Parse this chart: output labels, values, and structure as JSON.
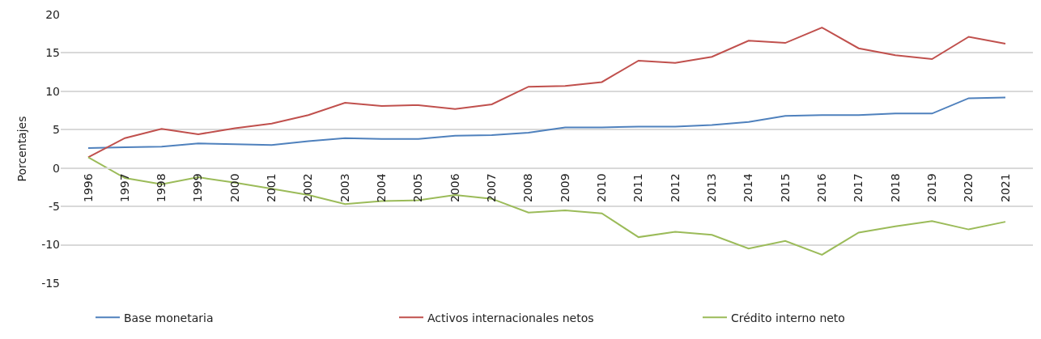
{
  "chart_data": {
    "type": "line",
    "ylabel": "Porcentajes",
    "categories": [
      "1996",
      "1997",
      "1998",
      "1999",
      "2000",
      "2001",
      "2002",
      "2003",
      "2004",
      "2005",
      "2006",
      "2007",
      "2008",
      "2009",
      "2010",
      "2011",
      "2012",
      "2013",
      "2014",
      "2015",
      "2016",
      "2017",
      "2018",
      "2019",
      "2020",
      "2021"
    ],
    "series": [
      {
        "name": "Base monetaria",
        "color": "#4f81bd",
        "values": [
          2.6,
          2.7,
          2.8,
          3.2,
          3.1,
          3.0,
          3.5,
          3.9,
          3.8,
          3.8,
          4.2,
          4.3,
          4.6,
          5.3,
          5.3,
          5.4,
          5.4,
          5.6,
          6.0,
          6.8,
          6.9,
          6.9,
          7.1,
          7.1,
          9.1,
          9.2
        ]
      },
      {
        "name": "Activos internacionales netos",
        "color": "#c0504d",
        "values": [
          1.4,
          3.9,
          5.1,
          4.4,
          5.2,
          5.8,
          6.9,
          8.5,
          8.1,
          8.2,
          7.7,
          8.3,
          10.6,
          10.7,
          11.2,
          14.0,
          13.7,
          14.5,
          16.6,
          16.3,
          18.3,
          15.6,
          14.7,
          14.2,
          17.1,
          16.2
        ]
      },
      {
        "name": "Crédito interno neto",
        "color": "#9bbb59",
        "values": [
          1.4,
          -1.3,
          -2.1,
          -1.2,
          -1.9,
          -2.7,
          -3.5,
          -4.7,
          -4.3,
          -4.2,
          -3.5,
          -4.0,
          -5.8,
          -5.5,
          -5.9,
          -9.0,
          -8.3,
          -8.7,
          -10.5,
          -9.5,
          -11.3,
          -8.4,
          -7.6,
          -6.9,
          -8.0,
          -7.0
        ]
      }
    ],
    "ylim": [
      -15,
      20
    ],
    "yticks": [
      -15,
      -10,
      -5,
      0,
      5,
      10,
      15,
      20
    ],
    "grid": "y",
    "legend": "bottom",
    "marker": "none",
    "line_style": "solid"
  }
}
